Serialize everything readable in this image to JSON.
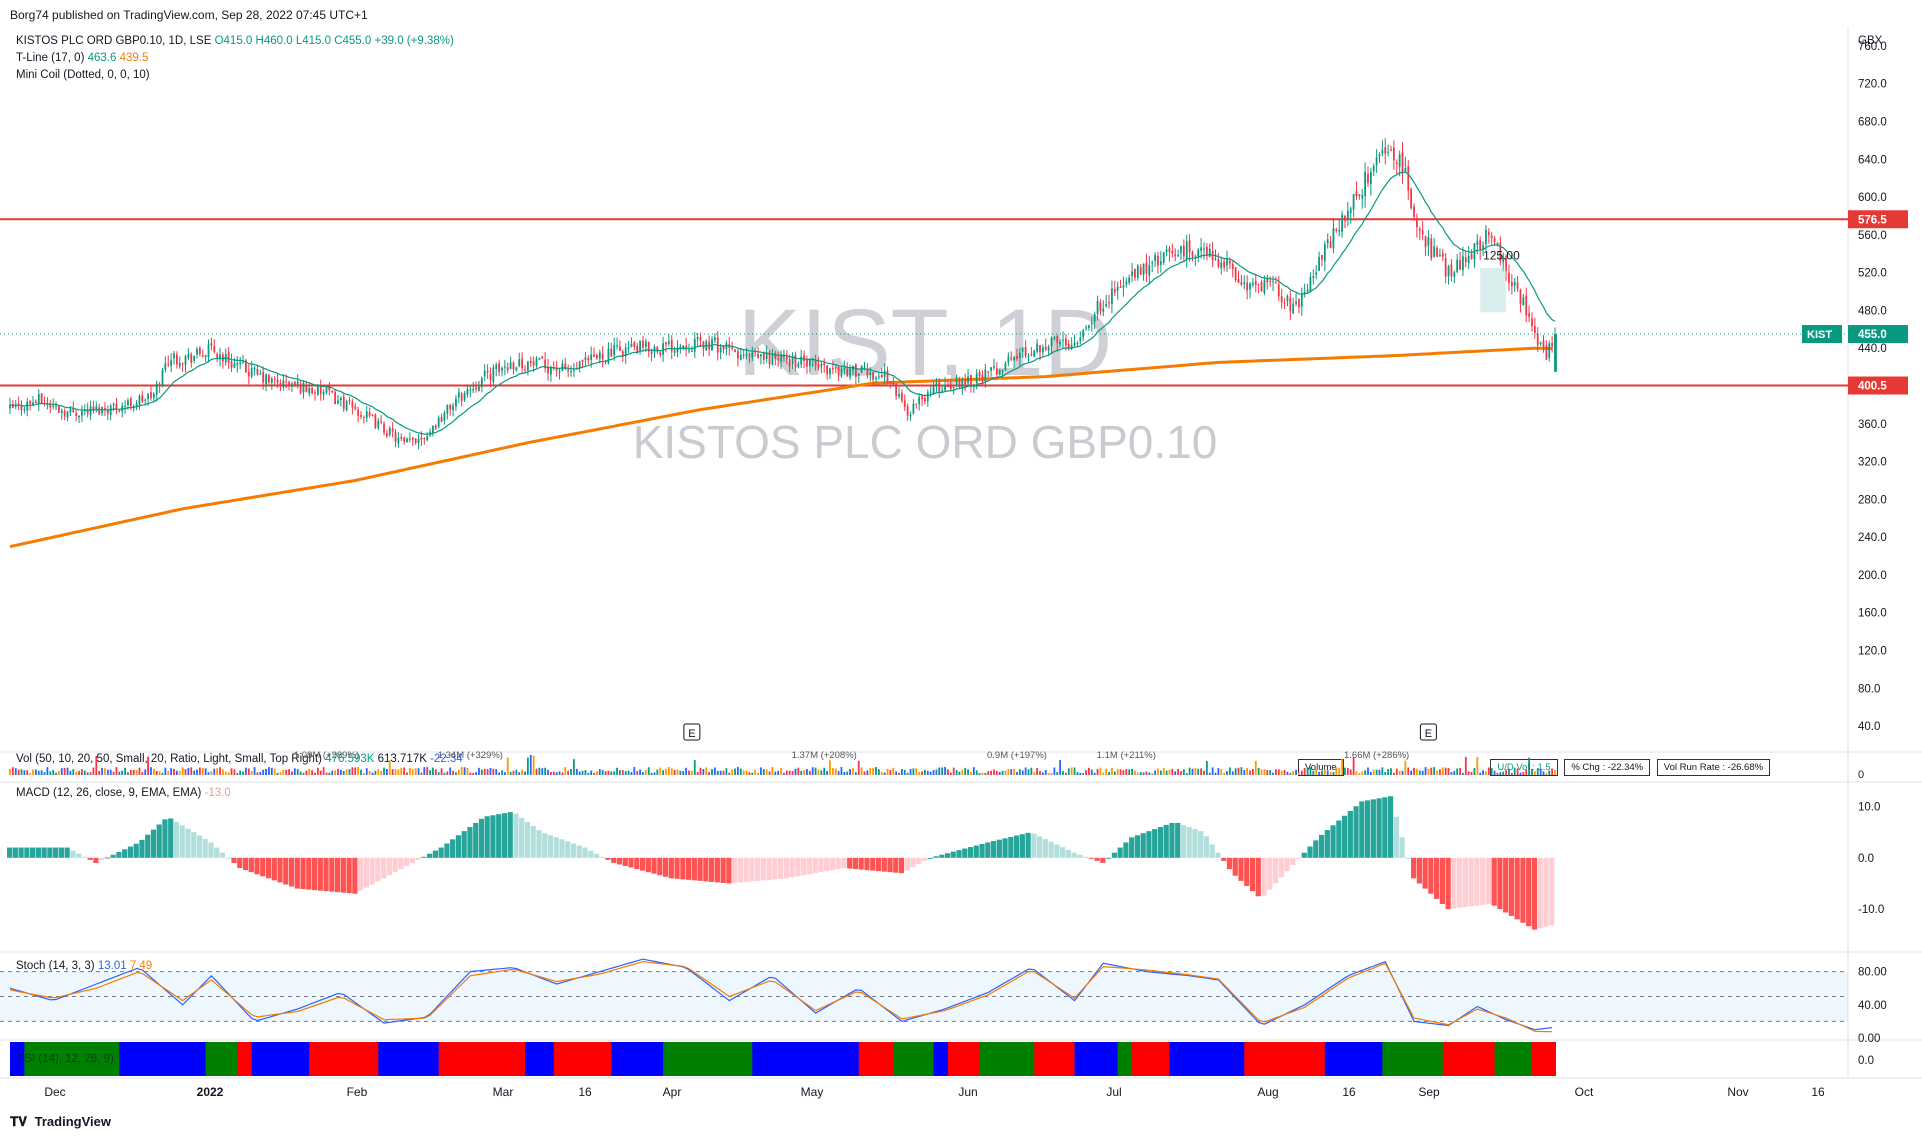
{
  "header": {
    "published": "Borg74 published on TradingView.com, Sep 28, 2022 07:45 UTC+1"
  },
  "legend": {
    "symbol": "KISTOS PLC ORD GBP0.10, 1D, LSE",
    "o": "O415.0",
    "h": "H460.0",
    "l": "L415.0",
    "c": "C455.0",
    "chg": "+39.0 (+9.38%)",
    "tline": "T-Line (17, 0)",
    "tline_v1": "463.6",
    "tline_v2": "439.5",
    "minicoil": "Mini Coil (Dotted, 0, 0, 10)"
  },
  "watermark": {
    "ticker": "KIST, 1D",
    "name": "KISTOS PLC ORD GBP0.10"
  },
  "axis": {
    "currency": "GBX",
    "price_ticks": [
      "760.0",
      "720.0",
      "680.0",
      "640.0",
      "600.0",
      "560.0",
      "520.0",
      "480.0",
      "440.0",
      "400.0",
      "360.0",
      "320.0",
      "280.0",
      "240.0",
      "200.0",
      "160.0",
      "120.0",
      "80.0",
      "40.0"
    ],
    "vol_tick": "0",
    "macd_ticks": [
      "10.0",
      "0.0",
      "-10.0"
    ],
    "stoch_ticks": [
      "80.00",
      "40.00",
      "0.00"
    ],
    "bottom_tick": "0.0",
    "time_labels": [
      "Dec",
      "2022",
      "Feb",
      "Mar",
      "16",
      "Apr",
      "May",
      "Jun",
      "Jul",
      "Aug",
      "16",
      "Sep",
      "Oct",
      "Nov",
      "16"
    ]
  },
  "levels": {
    "upper": "576.5",
    "lower": "400.5",
    "current_symbol": "KIST",
    "current": "455.0"
  },
  "annotations": {
    "box_label": "125.00",
    "earnings": [
      "E",
      "E"
    ]
  },
  "volume_pane": {
    "label": "Vol (50, 10, 20, 50, Small, 20, Ratio, Light, Small, Top Right)",
    "v1": "476.593K",
    "v2": "613.717K",
    "v3": "-22.34",
    "spikes": [
      "1.09M (+289%)",
      "1.34M (+329%)",
      "1.37M (+208%)",
      "0.9M (+197%)",
      "1.1M (+211%)",
      "1.66M (+286%)"
    ],
    "stats": [
      "Volume",
      "U/D Vol : 1.5",
      "% Chg : -22.34%",
      "Vol Run Rate : -26.68%"
    ]
  },
  "macd_pane": {
    "label": "MACD (12, 26, close, 9, EMA, EMA)",
    "value": "-13.0"
  },
  "stoch_pane": {
    "label": "Stoch (14, 3, 3)",
    "k": "13.01",
    "d": "7.49"
  },
  "bottom_pane": {
    "label": "RSI (14), 12, 26, 9)"
  },
  "footer": {
    "brand": "TradingView"
  },
  "chart_data": {
    "type": "candlestick",
    "currency": "GBX",
    "price_range": [
      20,
      780
    ],
    "horizontal_levels": [
      576.5,
      400.5
    ],
    "last_price": 455.0,
    "price_path": [
      [
        0,
        375
      ],
      [
        10,
        385
      ],
      [
        20,
        372
      ],
      [
        30,
        375
      ],
      [
        40,
        380
      ],
      [
        50,
        390
      ],
      [
        55,
        430
      ],
      [
        62,
        430
      ],
      [
        70,
        438
      ],
      [
        80,
        420
      ],
      [
        90,
        405
      ],
      [
        100,
        400
      ],
      [
        110,
        392
      ],
      [
        120,
        375
      ],
      [
        130,
        355
      ],
      [
        137,
        338
      ],
      [
        145,
        350
      ],
      [
        155,
        385
      ],
      [
        165,
        410
      ],
      [
        175,
        425
      ],
      [
        185,
        422
      ],
      [
        195,
        415
      ],
      [
        205,
        432
      ],
      [
        215,
        440
      ],
      [
        225,
        440
      ],
      [
        235,
        445
      ],
      [
        245,
        444
      ],
      [
        255,
        430
      ],
      [
        265,
        430
      ],
      [
        275,
        425
      ],
      [
        285,
        418
      ],
      [
        295,
        415
      ],
      [
        305,
        410
      ],
      [
        312,
        372
      ],
      [
        320,
        395
      ],
      [
        330,
        405
      ],
      [
        340,
        412
      ],
      [
        350,
        432
      ],
      [
        360,
        445
      ],
      [
        370,
        448
      ],
      [
        380,
        490
      ],
      [
        390,
        515
      ],
      [
        400,
        535
      ],
      [
        410,
        545
      ],
      [
        420,
        535
      ],
      [
        430,
        505
      ],
      [
        440,
        505
      ],
      [
        446,
        480
      ],
      [
        452,
        515
      ],
      [
        460,
        560
      ],
      [
        468,
        600
      ],
      [
        475,
        640
      ],
      [
        480,
        655
      ],
      [
        485,
        620
      ],
      [
        490,
        560
      ],
      [
        500,
        520
      ],
      [
        510,
        550
      ],
      [
        515,
        565
      ],
      [
        520,
        520
      ],
      [
        525,
        495
      ],
      [
        530,
        450
      ],
      [
        534,
        430
      ],
      [
        537,
        455
      ]
    ],
    "ma200_path": [
      [
        0,
        230
      ],
      [
        60,
        270
      ],
      [
        120,
        300
      ],
      [
        180,
        340
      ],
      [
        240,
        375
      ],
      [
        300,
        403
      ],
      [
        360,
        410
      ],
      [
        420,
        425
      ],
      [
        480,
        432
      ],
      [
        530,
        440
      ],
      [
        537,
        439.5
      ]
    ],
    "macd_path": [
      [
        0,
        2
      ],
      [
        20,
        2
      ],
      [
        30,
        -1
      ],
      [
        45,
        3
      ],
      [
        55,
        8
      ],
      [
        70,
        3
      ],
      [
        80,
        -2
      ],
      [
        100,
        -6
      ],
      [
        120,
        -7
      ],
      [
        130,
        -4
      ],
      [
        150,
        2
      ],
      [
        165,
        8
      ],
      [
        175,
        9
      ],
      [
        185,
        5
      ],
      [
        200,
        2
      ],
      [
        210,
        -1
      ],
      [
        230,
        -4
      ],
      [
        250,
        -5
      ],
      [
        270,
        -4
      ],
      [
        290,
        -2
      ],
      [
        310,
        -3
      ],
      [
        320,
        0
      ],
      [
        340,
        3
      ],
      [
        355,
        5
      ],
      [
        370,
        1
      ],
      [
        380,
        -1
      ],
      [
        390,
        4
      ],
      [
        405,
        7
      ],
      [
        415,
        5
      ],
      [
        425,
        -3
      ],
      [
        435,
        -8
      ],
      [
        445,
        -2
      ],
      [
        455,
        4
      ],
      [
        470,
        11
      ],
      [
        480,
        12
      ],
      [
        488,
        -4
      ],
      [
        500,
        -10
      ],
      [
        515,
        -9
      ],
      [
        530,
        -14
      ],
      [
        537,
        -13
      ]
    ],
    "stoch_k_path": [
      [
        0,
        60
      ],
      [
        15,
        45
      ],
      [
        30,
        65
      ],
      [
        45,
        85
      ],
      [
        60,
        40
      ],
      [
        70,
        75
      ],
      [
        85,
        20
      ],
      [
        100,
        35
      ],
      [
        115,
        55
      ],
      [
        130,
        18
      ],
      [
        145,
        25
      ],
      [
        160,
        80
      ],
      [
        175,
        85
      ],
      [
        190,
        65
      ],
      [
        205,
        80
      ],
      [
        220,
        95
      ],
      [
        235,
        85
      ],
      [
        250,
        45
      ],
      [
        265,
        75
      ],
      [
        280,
        30
      ],
      [
        295,
        60
      ],
      [
        310,
        20
      ],
      [
        325,
        35
      ],
      [
        340,
        55
      ],
      [
        355,
        85
      ],
      [
        370,
        45
      ],
      [
        380,
        90
      ],
      [
        395,
        80
      ],
      [
        410,
        75
      ],
      [
        420,
        70
      ],
      [
        435,
        15
      ],
      [
        450,
        40
      ],
      [
        465,
        75
      ],
      [
        478,
        92
      ],
      [
        488,
        20
      ],
      [
        500,
        15
      ],
      [
        510,
        38
      ],
      [
        520,
        22
      ],
      [
        530,
        10
      ],
      [
        537,
        13.01
      ]
    ],
    "stoch_d_path": [
      [
        0,
        58
      ],
      [
        15,
        48
      ],
      [
        30,
        60
      ],
      [
        45,
        80
      ],
      [
        60,
        45
      ],
      [
        70,
        70
      ],
      [
        85,
        25
      ],
      [
        100,
        32
      ],
      [
        115,
        50
      ],
      [
        130,
        22
      ],
      [
        145,
        24
      ],
      [
        160,
        75
      ],
      [
        175,
        83
      ],
      [
        190,
        68
      ],
      [
        205,
        77
      ],
      [
        220,
        92
      ],
      [
        235,
        86
      ],
      [
        250,
        50
      ],
      [
        265,
        70
      ],
      [
        280,
        33
      ],
      [
        295,
        57
      ],
      [
        310,
        23
      ],
      [
        325,
        33
      ],
      [
        340,
        52
      ],
      [
        355,
        82
      ],
      [
        370,
        48
      ],
      [
        380,
        86
      ],
      [
        395,
        82
      ],
      [
        410,
        76
      ],
      [
        420,
        71
      ],
      [
        435,
        18
      ],
      [
        450,
        37
      ],
      [
        465,
        72
      ],
      [
        478,
        90
      ],
      [
        488,
        24
      ],
      [
        500,
        16
      ],
      [
        510,
        35
      ],
      [
        520,
        24
      ],
      [
        530,
        8
      ],
      [
        537,
        7.49
      ]
    ],
    "stoch_band": [
      20,
      80
    ],
    "time_axis": [
      "Dec",
      "2022",
      "Feb",
      "Mar",
      "16",
      "Apr",
      "May",
      "Jun",
      "Jul",
      "Aug",
      "16",
      "Sep",
      "Oct",
      "Nov",
      "16"
    ]
  }
}
